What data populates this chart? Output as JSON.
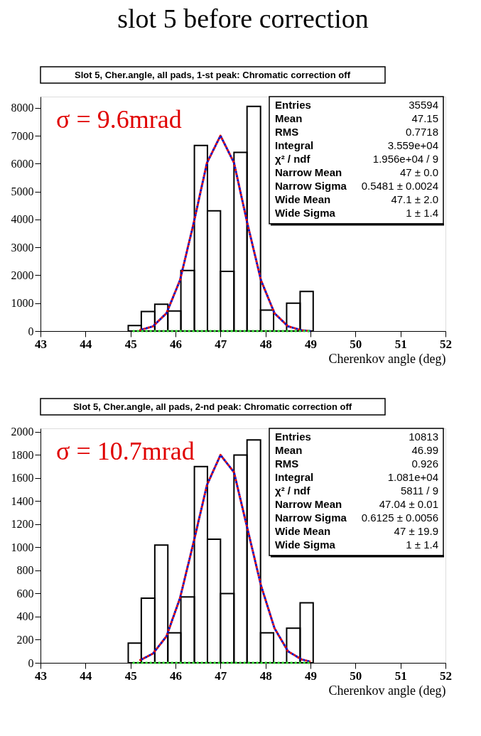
{
  "chart_data": [
    {
      "type": "histogram",
      "title": "slot 5 before correction",
      "subtitle": "Slot 5, Cher.angle, all pads, 1-st peak: Chromatic correction off",
      "xlabel": "Cherenkov angle (deg)",
      "bins": [
        44.95,
        45.24,
        45.54,
        45.83,
        46.12,
        46.42,
        46.71,
        47.0,
        47.3,
        47.59,
        47.89,
        48.18,
        48.47,
        48.77,
        49.06
      ],
      "values": [
        200,
        700,
        960,
        720,
        2170,
        6650,
        4310,
        2140,
        6400,
        8050,
        750,
        0,
        1000,
        1420
      ],
      "color": "#000000",
      "series": [
        {
          "type": "line",
          "color": "#e00000",
          "line_style": "dashed",
          "x": [
            45.2,
            45.5,
            45.8,
            46.1,
            46.4,
            46.7,
            47.0,
            47.3,
            47.6,
            47.9,
            48.2,
            48.5,
            48.8,
            49.0
          ],
          "values": [
            30,
            170,
            640,
            1820,
            3840,
            6030,
            7000,
            6030,
            3840,
            1820,
            640,
            170,
            30,
            0
          ]
        },
        {
          "type": "line",
          "color": "#1010c0",
          "line_style": "dotted",
          "x": [
            45.2,
            45.5,
            45.8,
            46.1,
            46.4,
            46.7,
            47.0,
            47.3,
            47.6,
            47.9,
            48.2,
            48.5,
            48.8,
            49.0
          ],
          "values": [
            30,
            170,
            640,
            1820,
            3840,
            6030,
            7000,
            6030,
            3840,
            1820,
            640,
            170,
            30,
            0
          ]
        },
        {
          "type": "line",
          "color": "#33dd33",
          "line_style": "dotted",
          "x": [
            45.0,
            49.0
          ],
          "values": [
            0,
            0
          ]
        }
      ],
      "annotations": [
        "σ = 9.6mrad",
        "Entries",
        "35594",
        "Mean",
        "47.15",
        "RMS",
        "0.7718",
        "Integral",
        "3.559e+04",
        "χ² / ndf",
        "1.956e+04 / 9",
        "Narrow Mean",
        "47 ± 0.0",
        "Narrow Sigma",
        "0.5481 ± 0.0024",
        "Wide Mean",
        "47.1 ± 2.0",
        "Wide Sigma",
        "1 ± 1.4"
      ],
      "xlim": [
        43,
        52
      ],
      "xticks": [
        43,
        44,
        45,
        46,
        47,
        48,
        49,
        50,
        51,
        52
      ],
      "ylim": [
        0,
        8400
      ],
      "yticks": [
        0,
        1000,
        2000,
        3000,
        4000,
        5000,
        6000,
        7000,
        8000
      ],
      "grid": false
    },
    {
      "type": "histogram",
      "subtitle": "Slot 5, Cher.angle, all pads, 2-nd peak: Chromatic correction off",
      "xlabel": "Cherenkov angle (deg)",
      "bins": [
        44.95,
        45.24,
        45.54,
        45.83,
        46.12,
        46.42,
        46.71,
        47.0,
        47.3,
        47.59,
        47.89,
        48.18,
        48.47,
        48.77,
        49.06
      ],
      "values": [
        170,
        560,
        1020,
        260,
        570,
        1700,
        1070,
        600,
        1800,
        1930,
        260,
        0,
        300,
        520
      ],
      "color": "#000000",
      "series": [
        {
          "type": "line",
          "color": "#e00000",
          "line_style": "dashed",
          "x": [
            45.2,
            45.5,
            45.8,
            46.1,
            46.4,
            46.7,
            47.0,
            47.3,
            47.6,
            47.9,
            48.2,
            48.5,
            48.8,
            49.0
          ],
          "values": [
            20,
            80,
            230,
            560,
            1040,
            1540,
            1800,
            1650,
            1160,
            670,
            300,
            100,
            30,
            10
          ]
        },
        {
          "type": "line",
          "color": "#1010c0",
          "line_style": "dotted",
          "x": [
            45.2,
            45.5,
            45.8,
            46.1,
            46.4,
            46.7,
            47.0,
            47.3,
            47.6,
            47.9,
            48.2,
            48.5,
            48.8,
            49.0
          ],
          "values": [
            20,
            80,
            230,
            560,
            1040,
            1540,
            1800,
            1650,
            1160,
            670,
            300,
            100,
            30,
            10
          ]
        },
        {
          "type": "line",
          "color": "#33dd33",
          "line_style": "dotted",
          "x": [
            45.0,
            49.0
          ],
          "values": [
            0,
            0
          ]
        }
      ],
      "annotations": [
        "σ = 10.7mrad",
        "Entries",
        "10813",
        "Mean",
        "46.99",
        "RMS",
        "0.926",
        "Integral",
        "1.081e+04",
        "χ² / ndf",
        "5811 / 9",
        "Narrow Mean",
        "47.04 ± 0.01",
        "Narrow Sigma",
        "0.6125 ± 0.0056",
        "Wide Mean",
        "47 ± 19.9",
        "Wide Sigma",
        "1 ± 1.4"
      ],
      "xlim": [
        43,
        52
      ],
      "xticks": [
        43,
        44,
        45,
        46,
        47,
        48,
        49,
        50,
        51,
        52
      ],
      "ylim": [
        0,
        2030
      ],
      "yticks": [
        0,
        200,
        400,
        600,
        800,
        1000,
        1200,
        1400,
        1600,
        1800,
        2000
      ],
      "grid": false
    }
  ]
}
